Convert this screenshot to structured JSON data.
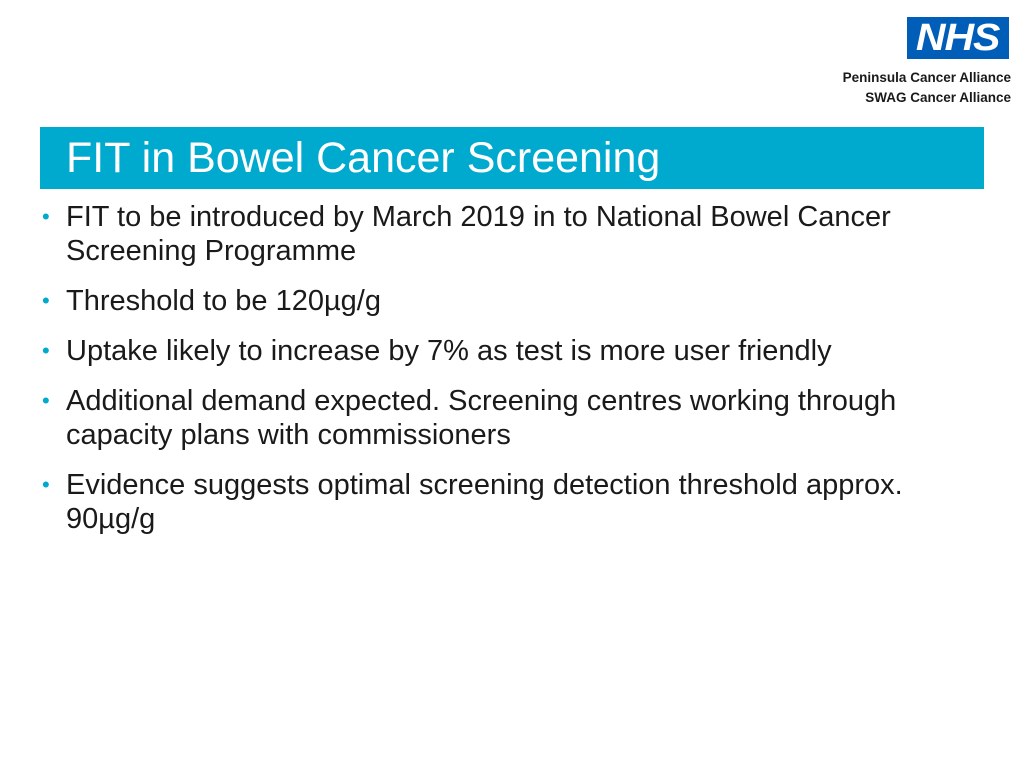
{
  "header": {
    "logo_text": "NHS",
    "logo_color": "#005eb8",
    "org_lines": [
      "Peninsula Cancer Alliance",
      "SWAG Cancer Alliance"
    ]
  },
  "title": {
    "text": "FIT in Bowel Cancer Screening",
    "bar_color": "#00a9ce"
  },
  "bullets": [
    "FIT to be introduced by March 2019 in to National Bowel Cancer Screening Programme",
    "Threshold to be 120µg/g",
    "Uptake likely to increase by 7% as test is more user friendly",
    "Additional demand expected. Screening centres working through capacity plans with commissioners",
    "Evidence suggests optimal screening detection threshold approx. 90µg/g"
  ],
  "bullet_symbol": "•"
}
